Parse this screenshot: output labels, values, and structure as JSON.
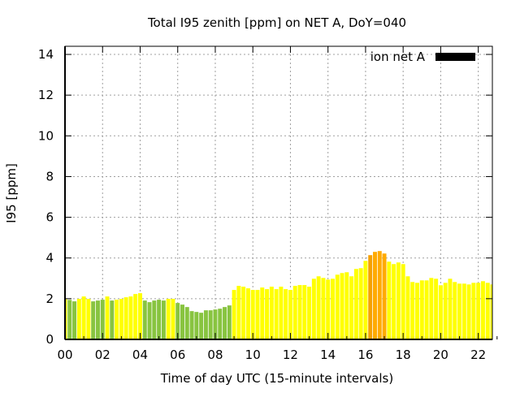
{
  "chart_data": {
    "type": "bar",
    "title": "Total I95 zenith [ppm] on NET A, DoY=040",
    "xlabel": "Time of day UTC (15-minute intervals)",
    "ylabel": "I95 [ppm]",
    "xlim": [
      0,
      22.75
    ],
    "ylim": [
      0,
      14.4
    ],
    "grid": true,
    "legend": {
      "label": "ion net A",
      "position": "top-right",
      "color": "#000000"
    },
    "xticks": [
      0,
      2,
      4,
      6,
      8,
      10,
      12,
      14,
      16,
      18,
      20,
      22
    ],
    "xtick_labels": [
      "00",
      "02",
      "04",
      "06",
      "08",
      "10",
      "12",
      "14",
      "16",
      "18",
      "20",
      "22"
    ],
    "yticks": [
      0,
      2,
      4,
      6,
      8,
      10,
      12,
      14
    ],
    "ytick_labels": [
      "0",
      "2",
      "4",
      "6",
      "8",
      "10",
      "12",
      "14"
    ],
    "interval_hours": 0.25,
    "colors": {
      "y": "#ffff00",
      "g": "#88c440",
      "o": "#f5a000",
      "p": "#ffaa00"
    },
    "values": [
      1.98,
      1.94,
      1.87,
      1.99,
      2.11,
      1.99,
      1.87,
      1.91,
      1.95,
      2.11,
      1.91,
      1.95,
      1.99,
      2.07,
      2.11,
      2.23,
      2.27,
      1.91,
      1.83,
      1.91,
      1.95,
      1.91,
      1.99,
      1.99,
      1.79,
      1.71,
      1.59,
      1.39,
      1.35,
      1.31,
      1.43,
      1.43,
      1.47,
      1.51,
      1.59,
      1.67,
      2.43,
      2.63,
      2.59,
      2.51,
      2.43,
      2.43,
      2.55,
      2.47,
      2.59,
      2.47,
      2.59,
      2.47,
      2.43,
      2.63,
      2.67,
      2.67,
      2.59,
      2.98,
      3.1,
      3.02,
      2.94,
      2.98,
      3.18,
      3.26,
      3.3,
      3.1,
      3.46,
      3.5,
      3.86,
      4.14,
      4.3,
      4.34,
      4.22,
      3.82,
      3.7,
      3.78,
      3.7,
      3.1,
      2.82,
      2.78,
      2.9,
      2.9,
      3.02,
      2.98,
      2.66,
      2.78,
      2.98,
      2.82,
      2.74,
      2.74,
      2.7,
      2.78,
      2.78,
      2.86,
      2.78,
      2.7
    ],
    "bar_colors": [
      "y",
      "g",
      "g",
      "y",
      "y",
      "y",
      "g",
      "g",
      "g",
      "y",
      "g",
      "y",
      "y",
      "y",
      "y",
      "y",
      "y",
      "g",
      "g",
      "g",
      "g",
      "g",
      "y",
      "y",
      "g",
      "g",
      "g",
      "g",
      "g",
      "g",
      "g",
      "g",
      "g",
      "g",
      "g",
      "g",
      "y",
      "y",
      "y",
      "y",
      "y",
      "y",
      "y",
      "y",
      "y",
      "y",
      "y",
      "y",
      "y",
      "y",
      "y",
      "y",
      "y",
      "y",
      "y",
      "y",
      "y",
      "y",
      "y",
      "y",
      "y",
      "y",
      "y",
      "y",
      "y",
      "o",
      "p",
      "p",
      "p",
      "y",
      "y",
      "y",
      "y",
      "y",
      "y",
      "y",
      "y",
      "y",
      "y",
      "y",
      "y",
      "y",
      "y",
      "y",
      "y",
      "y",
      "y",
      "y",
      "y",
      "y",
      "y",
      "y"
    ]
  }
}
